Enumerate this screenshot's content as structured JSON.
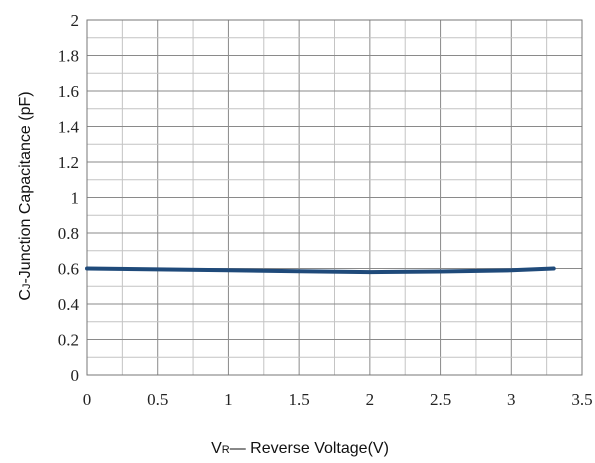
{
  "chart_data": {
    "type": "line",
    "xlabel_main": "V",
    "xlabel_sub": "R",
    "xlabel_rest": "— Reverse Voltage(V)",
    "ylabel_main": "C",
    "ylabel_sub": "J",
    "ylabel_rest": "-Junction Capacitance (pF)",
    "xlim": [
      0,
      3.5
    ],
    "ylim": [
      0,
      2
    ],
    "x_ticks": [
      0,
      0.5,
      1,
      1.5,
      2,
      2.5,
      3,
      3.5
    ],
    "x_tick_labels": [
      "0",
      "0.5",
      "1",
      "1.5",
      "2",
      "2.5",
      "3",
      "3.5"
    ],
    "y_ticks": [
      0,
      0.2,
      0.4,
      0.6,
      0.8,
      1,
      1.2,
      1.4,
      1.6,
      1.8,
      2
    ],
    "y_tick_labels": [
      "0",
      "0.2",
      "0.4",
      "0.6",
      "0.8",
      "1",
      "1.2",
      "1.4",
      "1.6",
      "1.8",
      "2"
    ],
    "grid": true,
    "series": [
      {
        "color": "#1f4a7a",
        "x": [
          0,
          0.5,
          1,
          1.5,
          2,
          2.5,
          3,
          3.3
        ],
        "y": [
          0.6,
          0.595,
          0.59,
          0.585,
          0.58,
          0.583,
          0.59,
          0.6
        ]
      }
    ]
  }
}
